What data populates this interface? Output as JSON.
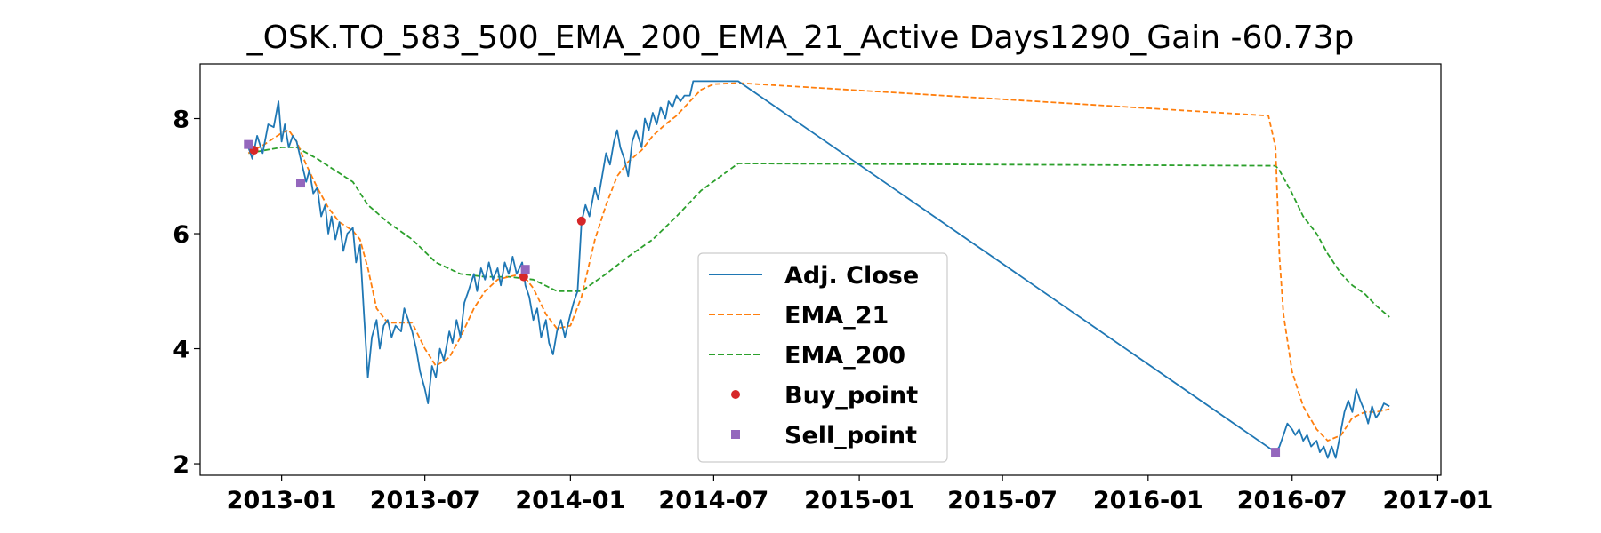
{
  "chart_data": {
    "type": "line",
    "title": "_OSK.TO_583_500_EMA_200_EMA_21_Active Days1290_Gain -60.73p",
    "xlabel": "",
    "ylabel": "",
    "xlim": [
      "2012-09-20",
      "2017-01-05"
    ],
    "ylim": [
      1.8,
      8.95
    ],
    "x_ticks": [
      "2013-01",
      "2013-07",
      "2014-01",
      "2014-07",
      "2015-01",
      "2015-07",
      "2016-01",
      "2016-07",
      "2017-01"
    ],
    "y_ticks": [
      2,
      4,
      6,
      8
    ],
    "grid": false,
    "legend": {
      "placement": "center",
      "entries": [
        "Adj. Close",
        "EMA_21",
        "EMA_200",
        "Buy_point",
        "Sell_point"
      ]
    },
    "colors": {
      "adj_close": "#1f77b4",
      "ema_21": "#ff7f0e",
      "ema_200": "#2ca02c",
      "buy": "#d62728",
      "sell": "#9467bd"
    },
    "series": [
      {
        "name": "Adj. Close",
        "style": "solid",
        "points": [
          [
            "2012-11-20",
            7.5
          ],
          [
            "2012-11-25",
            7.3
          ],
          [
            "2012-12-01",
            7.7
          ],
          [
            "2012-12-08",
            7.4
          ],
          [
            "2012-12-15",
            7.9
          ],
          [
            "2012-12-22",
            7.85
          ],
          [
            "2012-12-28",
            8.3
          ],
          [
            "2013-01-01",
            7.6
          ],
          [
            "2013-01-05",
            7.9
          ],
          [
            "2013-01-10",
            7.5
          ],
          [
            "2013-01-15",
            7.7
          ],
          [
            "2013-01-20",
            7.6
          ],
          [
            "2013-01-25",
            7.3
          ],
          [
            "2013-02-01",
            6.9
          ],
          [
            "2013-02-05",
            7.1
          ],
          [
            "2013-02-10",
            6.7
          ],
          [
            "2013-02-15",
            6.8
          ],
          [
            "2013-02-20",
            6.3
          ],
          [
            "2013-02-25",
            6.5
          ],
          [
            "2013-03-01",
            6.0
          ],
          [
            "2013-03-05",
            6.3
          ],
          [
            "2013-03-10",
            5.9
          ],
          [
            "2013-03-15",
            6.2
          ],
          [
            "2013-03-20",
            5.7
          ],
          [
            "2013-03-25",
            6.0
          ],
          [
            "2013-04-01",
            6.1
          ],
          [
            "2013-04-05",
            5.5
          ],
          [
            "2013-04-10",
            5.8
          ],
          [
            "2013-04-15",
            4.6
          ],
          [
            "2013-04-20",
            3.5
          ],
          [
            "2013-04-25",
            4.2
          ],
          [
            "2013-05-01",
            4.5
          ],
          [
            "2013-05-05",
            4.0
          ],
          [
            "2013-05-10",
            4.4
          ],
          [
            "2013-05-15",
            4.5
          ],
          [
            "2013-05-20",
            4.2
          ],
          [
            "2013-05-25",
            4.4
          ],
          [
            "2013-06-01",
            4.3
          ],
          [
            "2013-06-05",
            4.7
          ],
          [
            "2013-06-10",
            4.5
          ],
          [
            "2013-06-15",
            4.3
          ],
          [
            "2013-06-20",
            4.0
          ],
          [
            "2013-06-25",
            3.6
          ],
          [
            "2013-07-01",
            3.3
          ],
          [
            "2013-07-05",
            3.05
          ],
          [
            "2013-07-10",
            3.7
          ],
          [
            "2013-07-15",
            3.5
          ],
          [
            "2013-07-20",
            4.0
          ],
          [
            "2013-07-25",
            3.8
          ],
          [
            "2013-08-01",
            4.3
          ],
          [
            "2013-08-05",
            4.1
          ],
          [
            "2013-08-10",
            4.5
          ],
          [
            "2013-08-15",
            4.2
          ],
          [
            "2013-08-20",
            4.8
          ],
          [
            "2013-08-25",
            5.0
          ],
          [
            "2013-09-01",
            5.3
          ],
          [
            "2013-09-05",
            5.0
          ],
          [
            "2013-09-10",
            5.4
          ],
          [
            "2013-09-15",
            5.2
          ],
          [
            "2013-09-20",
            5.5
          ],
          [
            "2013-09-25",
            5.2
          ],
          [
            "2013-10-01",
            5.4
          ],
          [
            "2013-10-05",
            5.1
          ],
          [
            "2013-10-10",
            5.5
          ],
          [
            "2013-10-15",
            5.3
          ],
          [
            "2013-10-20",
            5.6
          ],
          [
            "2013-10-25",
            5.3
          ],
          [
            "2013-11-01",
            5.5
          ],
          [
            "2013-11-05",
            5.1
          ],
          [
            "2013-11-10",
            4.9
          ],
          [
            "2013-11-15",
            4.5
          ],
          [
            "2013-11-20",
            4.7
          ],
          [
            "2013-11-25",
            4.2
          ],
          [
            "2013-12-01",
            4.5
          ],
          [
            "2013-12-05",
            4.1
          ],
          [
            "2013-12-10",
            3.9
          ],
          [
            "2013-12-15",
            4.3
          ],
          [
            "2013-12-20",
            4.5
          ],
          [
            "2013-12-25",
            4.2
          ],
          [
            "2014-01-01",
            4.6
          ],
          [
            "2014-01-05",
            4.8
          ],
          [
            "2014-01-10",
            5.0
          ],
          [
            "2014-01-15",
            6.2
          ],
          [
            "2014-01-20",
            6.5
          ],
          [
            "2014-01-25",
            6.3
          ],
          [
            "2014-02-01",
            6.8
          ],
          [
            "2014-02-05",
            6.6
          ],
          [
            "2014-02-10",
            7.0
          ],
          [
            "2014-02-15",
            7.4
          ],
          [
            "2014-02-20",
            7.2
          ],
          [
            "2014-02-25",
            7.6
          ],
          [
            "2014-03-01",
            7.8
          ],
          [
            "2014-03-05",
            7.5
          ],
          [
            "2014-03-10",
            7.3
          ],
          [
            "2014-03-15",
            7.0
          ],
          [
            "2014-03-20",
            7.6
          ],
          [
            "2014-03-25",
            7.8
          ],
          [
            "2014-04-01",
            7.5
          ],
          [
            "2014-04-05",
            8.0
          ],
          [
            "2014-04-10",
            7.8
          ],
          [
            "2014-04-15",
            8.1
          ],
          [
            "2014-04-20",
            7.9
          ],
          [
            "2014-04-25",
            8.2
          ],
          [
            "2014-05-01",
            8.0
          ],
          [
            "2014-05-05",
            8.3
          ],
          [
            "2014-05-10",
            8.2
          ],
          [
            "2014-05-15",
            8.4
          ],
          [
            "2014-05-20",
            8.3
          ],
          [
            "2014-05-25",
            8.4
          ],
          [
            "2014-06-01",
            8.4
          ],
          [
            "2014-06-05",
            8.65
          ],
          [
            "2014-06-15",
            8.65
          ],
          [
            "2014-07-01",
            8.65
          ],
          [
            "2014-07-15",
            8.65
          ],
          [
            "2014-08-01",
            8.65
          ],
          [
            "2016-06-10",
            2.2
          ],
          [
            "2016-06-15",
            2.3
          ],
          [
            "2016-06-20",
            2.5
          ],
          [
            "2016-06-25",
            2.7
          ],
          [
            "2016-07-01",
            2.6
          ],
          [
            "2016-07-05",
            2.5
          ],
          [
            "2016-07-10",
            2.6
          ],
          [
            "2016-07-15",
            2.4
          ],
          [
            "2016-07-20",
            2.5
          ],
          [
            "2016-07-25",
            2.3
          ],
          [
            "2016-08-01",
            2.4
          ],
          [
            "2016-08-05",
            2.2
          ],
          [
            "2016-08-10",
            2.3
          ],
          [
            "2016-08-15",
            2.1
          ],
          [
            "2016-08-20",
            2.3
          ],
          [
            "2016-08-25",
            2.1
          ],
          [
            "2016-09-01",
            2.6
          ],
          [
            "2016-09-05",
            2.9
          ],
          [
            "2016-09-10",
            3.1
          ],
          [
            "2016-09-15",
            2.9
          ],
          [
            "2016-09-20",
            3.3
          ],
          [
            "2016-09-25",
            3.1
          ],
          [
            "2016-10-01",
            2.9
          ],
          [
            "2016-10-05",
            2.7
          ],
          [
            "2016-10-10",
            3.0
          ],
          [
            "2016-10-15",
            2.8
          ],
          [
            "2016-10-20",
            2.9
          ],
          [
            "2016-10-25",
            3.05
          ],
          [
            "2016-11-01",
            3.0
          ]
        ]
      },
      {
        "name": "EMA_21",
        "style": "dashed",
        "points": [
          [
            "2012-11-20",
            7.4
          ],
          [
            "2012-12-10",
            7.55
          ],
          [
            "2013-01-01",
            7.75
          ],
          [
            "2013-01-10",
            7.8
          ],
          [
            "2013-01-20",
            7.6
          ],
          [
            "2013-02-01",
            7.2
          ],
          [
            "2013-02-15",
            6.8
          ],
          [
            "2013-03-01",
            6.45
          ],
          [
            "2013-03-15",
            6.2
          ],
          [
            "2013-04-01",
            6.05
          ],
          [
            "2013-04-10",
            5.9
          ],
          [
            "2013-04-20",
            5.4
          ],
          [
            "2013-05-01",
            4.7
          ],
          [
            "2013-05-15",
            4.45
          ],
          [
            "2013-06-01",
            4.45
          ],
          [
            "2013-06-15",
            4.45
          ],
          [
            "2013-07-01",
            4.0
          ],
          [
            "2013-07-15",
            3.7
          ],
          [
            "2013-08-01",
            3.85
          ],
          [
            "2013-08-15",
            4.2
          ],
          [
            "2013-09-01",
            4.7
          ],
          [
            "2013-09-15",
            5.0
          ],
          [
            "2013-10-01",
            5.2
          ],
          [
            "2013-10-15",
            5.25
          ],
          [
            "2013-11-01",
            5.3
          ],
          [
            "2013-11-15",
            5.05
          ],
          [
            "2013-12-01",
            4.6
          ],
          [
            "2013-12-15",
            4.35
          ],
          [
            "2014-01-01",
            4.4
          ],
          [
            "2014-01-15",
            4.9
          ],
          [
            "2014-02-01",
            5.9
          ],
          [
            "2014-02-15",
            6.5
          ],
          [
            "2014-03-01",
            7.0
          ],
          [
            "2014-03-15",
            7.25
          ],
          [
            "2014-04-01",
            7.45
          ],
          [
            "2014-04-15",
            7.7
          ],
          [
            "2014-05-01",
            7.9
          ],
          [
            "2014-05-15",
            8.05
          ],
          [
            "2014-06-01",
            8.3
          ],
          [
            "2014-06-15",
            8.5
          ],
          [
            "2014-07-01",
            8.6
          ],
          [
            "2014-08-01",
            8.62
          ],
          [
            "2016-06-01",
            8.05
          ],
          [
            "2016-06-10",
            7.5
          ],
          [
            "2016-06-15",
            5.6
          ],
          [
            "2016-06-20",
            4.6
          ],
          [
            "2016-07-01",
            3.6
          ],
          [
            "2016-07-15",
            3.0
          ],
          [
            "2016-08-01",
            2.6
          ],
          [
            "2016-08-15",
            2.4
          ],
          [
            "2016-09-01",
            2.5
          ],
          [
            "2016-09-15",
            2.8
          ],
          [
            "2016-10-01",
            2.9
          ],
          [
            "2016-10-15",
            2.9
          ],
          [
            "2016-11-01",
            2.95
          ]
        ]
      },
      {
        "name": "EMA_200",
        "style": "dashed",
        "points": [
          [
            "2012-11-20",
            7.4
          ],
          [
            "2013-01-01",
            7.5
          ],
          [
            "2013-01-20",
            7.5
          ],
          [
            "2013-02-15",
            7.3
          ],
          [
            "2013-03-15",
            7.05
          ],
          [
            "2013-04-01",
            6.9
          ],
          [
            "2013-04-20",
            6.5
          ],
          [
            "2013-05-15",
            6.2
          ],
          [
            "2013-06-15",
            5.9
          ],
          [
            "2013-07-15",
            5.5
          ],
          [
            "2013-08-15",
            5.3
          ],
          [
            "2013-09-15",
            5.25
          ],
          [
            "2013-10-15",
            5.25
          ],
          [
            "2013-11-15",
            5.2
          ],
          [
            "2013-12-15",
            5.0
          ],
          [
            "2014-01-15",
            5.0
          ],
          [
            "2014-02-15",
            5.3
          ],
          [
            "2014-03-15",
            5.6
          ],
          [
            "2014-04-15",
            5.9
          ],
          [
            "2014-05-15",
            6.3
          ],
          [
            "2014-06-15",
            6.75
          ],
          [
            "2014-07-15",
            7.05
          ],
          [
            "2014-08-01",
            7.22
          ],
          [
            "2016-06-10",
            7.18
          ],
          [
            "2016-06-15",
            7.1
          ],
          [
            "2016-07-01",
            6.7
          ],
          [
            "2016-07-15",
            6.3
          ],
          [
            "2016-08-01",
            6.0
          ],
          [
            "2016-08-15",
            5.65
          ],
          [
            "2016-09-01",
            5.3
          ],
          [
            "2016-09-15",
            5.1
          ],
          [
            "2016-10-01",
            4.95
          ],
          [
            "2016-10-15",
            4.75
          ],
          [
            "2016-11-01",
            4.55
          ]
        ]
      }
    ],
    "buy_points": [
      [
        "2012-11-27",
        7.45
      ],
      [
        "2013-11-03",
        5.25
      ],
      [
        "2014-01-15",
        6.22
      ]
    ],
    "sell_points": [
      [
        "2012-11-20",
        7.55
      ],
      [
        "2013-01-25",
        6.88
      ],
      [
        "2013-11-05",
        5.38
      ],
      [
        "2016-06-10",
        2.2
      ]
    ]
  }
}
